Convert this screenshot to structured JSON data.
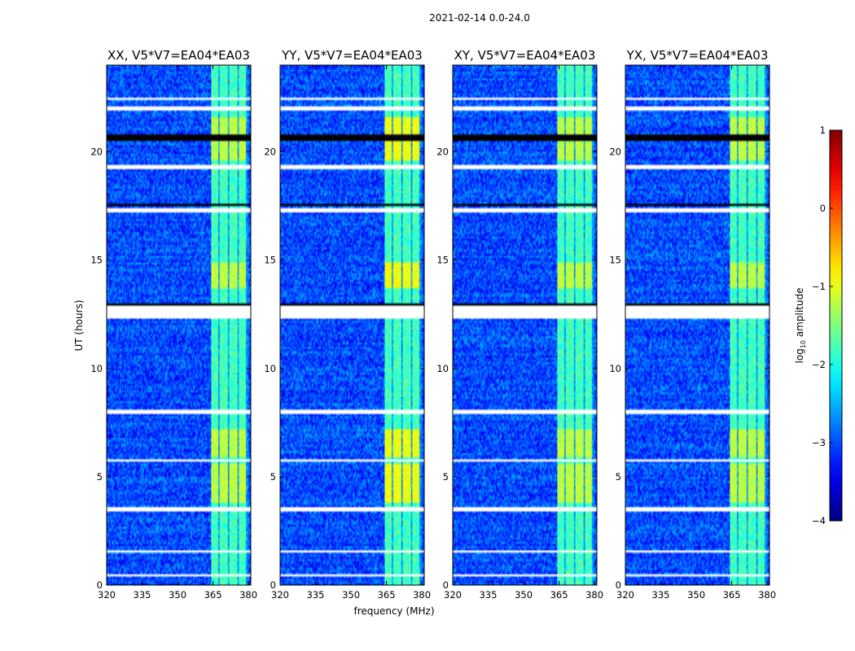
{
  "chart_data": {
    "type": "heatmap",
    "suptitle": "2021-02-14 0.0-24.0",
    "xlabel": "frequency (MHz)",
    "ylabel": "UT (hours)",
    "xlim": [
      320,
      381
    ],
    "ylim": [
      0,
      24
    ],
    "xticks": [
      "320",
      "335",
      "350",
      "365",
      "380"
    ],
    "yticks": [
      "0",
      "5",
      "10",
      "15",
      "20"
    ],
    "xtick_values": [
      320,
      335,
      350,
      365,
      380
    ],
    "ytick_values": [
      0,
      5,
      10,
      15,
      20
    ],
    "panels": [
      {
        "title": "XX, V5*V7=EA04*EA03",
        "polarization": "XX",
        "band_boost": 0.0
      },
      {
        "title": "YY, V5*V7=EA04*EA03",
        "polarization": "YY",
        "band_boost": 0.25
      },
      {
        "title": "XY, V5*V7=EA04*EA03",
        "polarization": "XY",
        "band_boost": 0.0
      },
      {
        "title": "YX, V5*V7=EA04*EA03",
        "polarization": "YX",
        "band_boost": 0.0
      }
    ],
    "colorbar": {
      "label": "log10 amplitude",
      "label_base": "log",
      "label_sub": "10",
      "label_rest": " amplitude",
      "range": [
        -4,
        1
      ],
      "ticks": [
        "1",
        "0",
        "−1",
        "−2",
        "−3",
        "−4"
      ],
      "tick_values": [
        1,
        0,
        -1,
        -2,
        -3,
        -4
      ],
      "colormap": "jet"
    },
    "background_level_log10": -3.0,
    "rfi_band_mhz": [
      364,
      380
    ],
    "rfi_band_level_log10": -1.8,
    "strong_rfi_hours": [
      [
        3.8,
        5.6
      ],
      [
        5.9,
        7.2
      ],
      [
        13.7,
        14.9
      ],
      [
        19.6,
        21.6
      ]
    ],
    "flagged_hours_white": [
      [
        0.35,
        0.5
      ],
      [
        1.5,
        1.6
      ],
      [
        3.4,
        3.6
      ],
      [
        5.7,
        5.85
      ],
      [
        7.9,
        8.1
      ],
      [
        12.3,
        12.9
      ],
      [
        17.2,
        17.35
      ],
      [
        19.2,
        19.4
      ],
      [
        21.9,
        22.1
      ],
      [
        22.4,
        22.5
      ]
    ],
    "dropout_hours_black": [
      [
        12.9,
        13.0
      ],
      [
        20.5,
        20.75
      ],
      [
        17.5,
        17.6
      ]
    ],
    "colors": {
      "background": "#ffffff",
      "axes": "#000000"
    }
  }
}
